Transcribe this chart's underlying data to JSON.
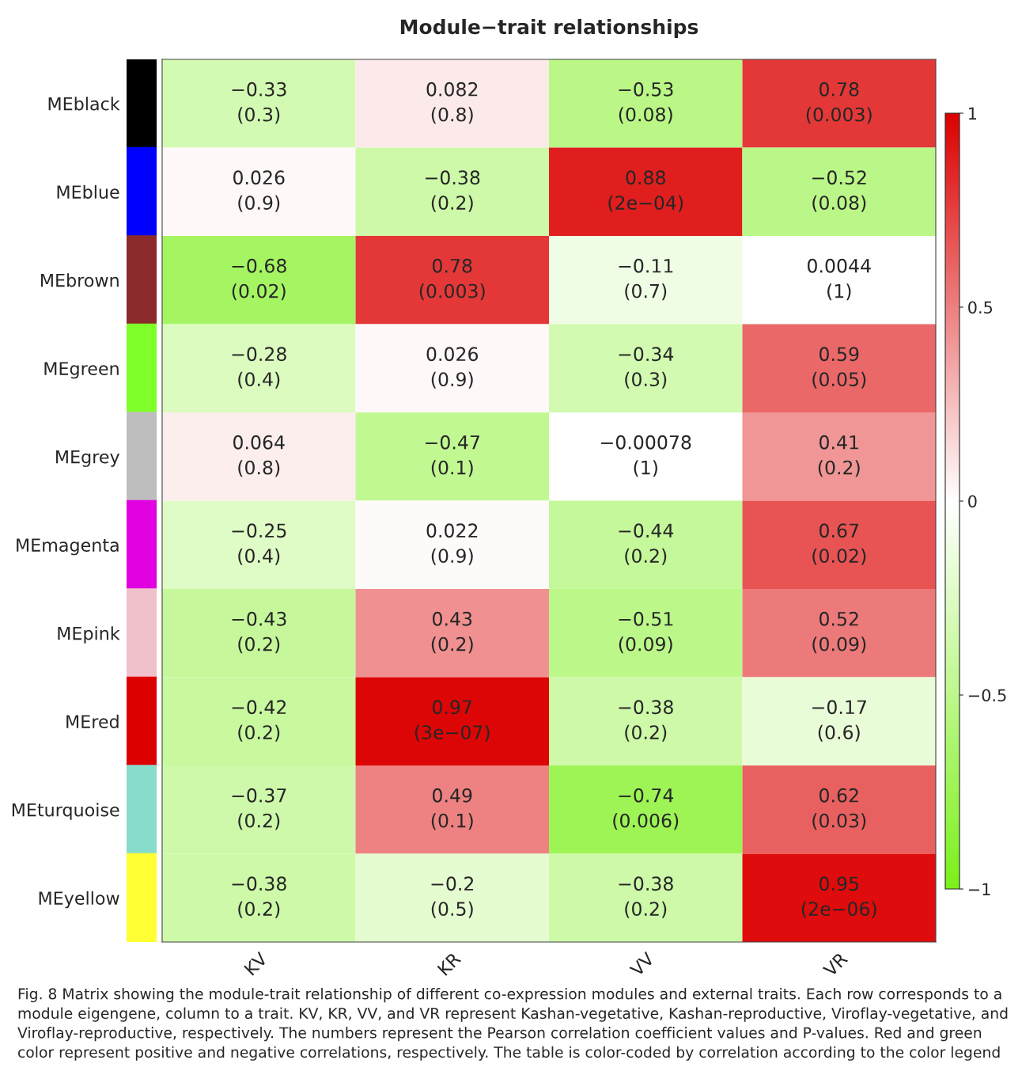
{
  "chart_data": {
    "type": "heatmap",
    "title": "Module−trait relationships",
    "categories": [
      "KV",
      "KR",
      "VV",
      "VR"
    ],
    "y_categories": [
      "MEblack",
      "MEblue",
      "MEbrown",
      "MEgreen",
      "MEgrey",
      "MEmagenta",
      "MEpink",
      "MEred",
      "MEturquoise",
      "MEyellow"
    ],
    "cells": [
      [
        -0.33,
        0.082,
        -0.53,
        0.78
      ],
      [
        0.026,
        -0.38,
        0.88,
        -0.52
      ],
      [
        -0.68,
        0.78,
        -0.11,
        0.0044
      ],
      [
        -0.28,
        0.026,
        -0.34,
        0.59
      ],
      [
        0.064,
        -0.47,
        -0.00078,
        0.41
      ],
      [
        -0.25,
        0.022,
        -0.44,
        0.67
      ],
      [
        -0.43,
        0.43,
        -0.51,
        0.52
      ],
      [
        -0.42,
        0.97,
        -0.38,
        -0.17
      ],
      [
        -0.37,
        0.49,
        -0.74,
        0.62
      ],
      [
        -0.38,
        -0.2,
        -0.38,
        0.95
      ]
    ],
    "cell_labels": [
      [
        "−0.33\n(0.3)",
        "0.082\n(0.8)",
        "−0.53\n(0.08)",
        "0.78\n(0.003)"
      ],
      [
        "0.026\n(0.9)",
        "−0.38\n(0.2)",
        "0.88\n(2e−04)",
        "−0.52\n(0.08)"
      ],
      [
        "−0.68\n(0.02)",
        "0.78\n(0.003)",
        "−0.11\n(0.7)",
        "0.0044\n(1)"
      ],
      [
        "−0.28\n(0.4)",
        "0.026\n(0.9)",
        "−0.34\n(0.3)",
        "0.59\n(0.05)"
      ],
      [
        "0.064\n(0.8)",
        "−0.47\n(0.1)",
        "−0.00078\n(1)",
        "0.41\n(0.2)"
      ],
      [
        "−0.25\n(0.4)",
        "0.022\n(0.9)",
        "−0.44\n(0.2)",
        "0.67\n(0.02)"
      ],
      [
        "−0.43\n(0.2)",
        "0.43\n(0.2)",
        "−0.51\n(0.09)",
        "0.52\n(0.09)"
      ],
      [
        "−0.42\n(0.2)",
        "0.97\n(3e−07)",
        "−0.38\n(0.2)",
        "−0.17\n(0.6)"
      ],
      [
        "−0.37\n(0.2)",
        "0.49\n(0.1)",
        "−0.74\n(0.006)",
        "0.62\n(0.03)"
      ],
      [
        "−0.38\n(0.2)",
        "−0.2\n(0.5)",
        "−0.38\n(0.2)",
        "0.95\n(2e−06)"
      ]
    ],
    "clim": [
      -1,
      1
    ],
    "cticks": [
      {
        "value": -1,
        "label": "−1"
      },
      {
        "value": -0.5,
        "label": "−0.5"
      },
      {
        "value": 0,
        "label": "0"
      },
      {
        "value": 0.5,
        "label": "0.5"
      },
      {
        "value": 1,
        "label": "1"
      }
    ],
    "annotations": [
      "Fig. 8 Matrix showing the module-trait relationship of different co-expression modules and external traits. Each row corresponds to a module eigengene, column to a trait. KV, KR, VV, and VR represent Kashan-vegetative, Kashan-reproductive, Viroflay-vegetative, and Viroflay-reproductive, respectively. The numbers represent the Pearson correlation coefficient values and P-values. Red and green color represent positive and negative correlations, respectively. The table is color-coded by correlation according to the color legend"
    ]
  }
}
